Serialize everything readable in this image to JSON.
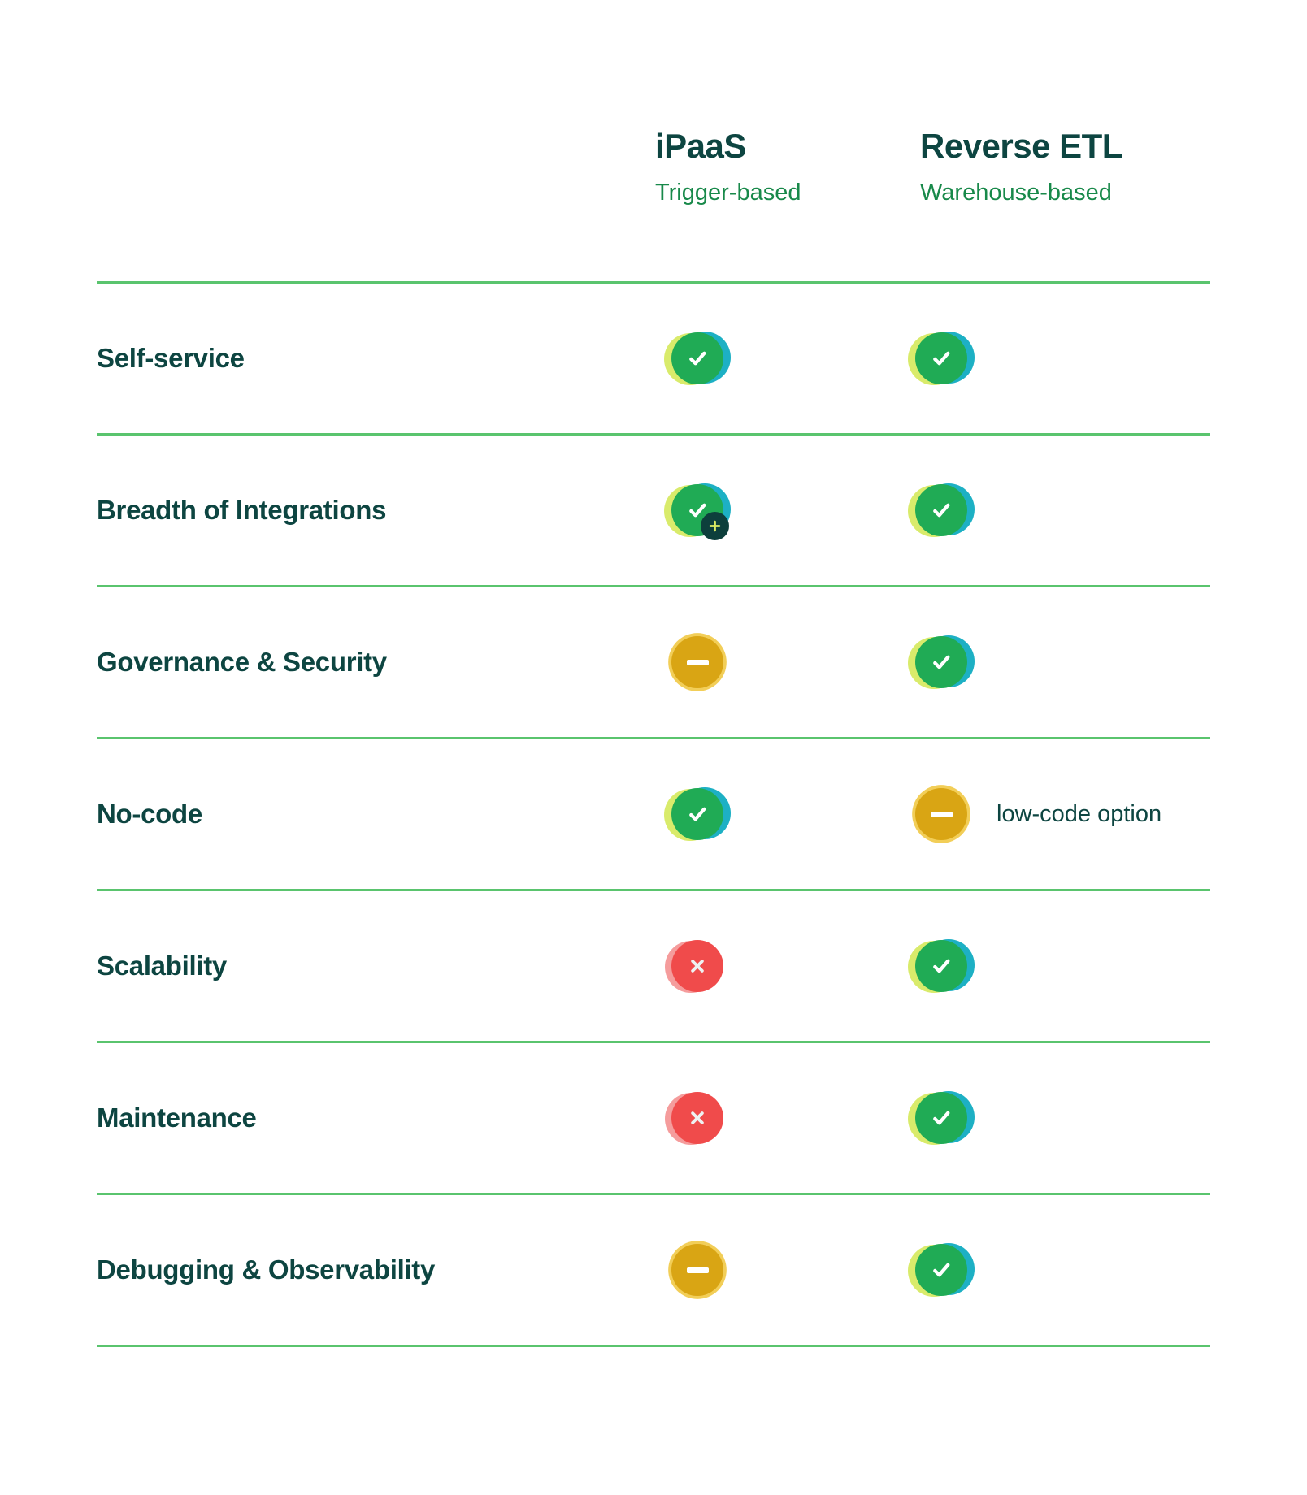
{
  "colors": {
    "heading": "#0d4541",
    "subtitle_green": "#18894a",
    "divider": "#5ac46e",
    "check_green": "#20ab55",
    "check_lime": "#d9eb6b",
    "check_teal": "#1db0c4",
    "dash_amber": "#d9a514",
    "dash_amber_light": "#f2ce58",
    "cross_red": "#f04b4b",
    "cross_red_light": "#f59c9c",
    "glyph_white": "#ffffff",
    "cross_glyph": "#eef2f2",
    "plus_badge_bg": "#0d3f3c",
    "plus_badge_glyph": "#dcec63"
  },
  "table": {
    "columns": [
      {
        "id": "ipaas",
        "name": "iPaaS",
        "subtitle": "Trigger-based"
      },
      {
        "id": "reverse-etl",
        "name": "Reverse ETL",
        "subtitle": "Warehouse-based"
      }
    ],
    "icon_legend": {
      "check": "supported",
      "check-plus": "supported-plus-more",
      "dash": "partial",
      "cross": "not-supported"
    },
    "rows": [
      {
        "label": "Self-service",
        "cells": [
          {
            "icon": "check"
          },
          {
            "icon": "check"
          }
        ]
      },
      {
        "label": "Breadth of Integrations",
        "cells": [
          {
            "icon": "check-plus"
          },
          {
            "icon": "check"
          }
        ]
      },
      {
        "label": "Governance & Security",
        "cells": [
          {
            "icon": "dash"
          },
          {
            "icon": "check"
          }
        ]
      },
      {
        "label": "No-code",
        "cells": [
          {
            "icon": "check"
          },
          {
            "icon": "dash",
            "note": "low-code option"
          }
        ]
      },
      {
        "label": "Scalability",
        "cells": [
          {
            "icon": "cross"
          },
          {
            "icon": "check"
          }
        ]
      },
      {
        "label": "Maintenance",
        "cells": [
          {
            "icon": "cross"
          },
          {
            "icon": "check"
          }
        ]
      },
      {
        "label": "Debugging & Observability",
        "cells": [
          {
            "icon": "dash"
          },
          {
            "icon": "check"
          }
        ]
      }
    ]
  }
}
